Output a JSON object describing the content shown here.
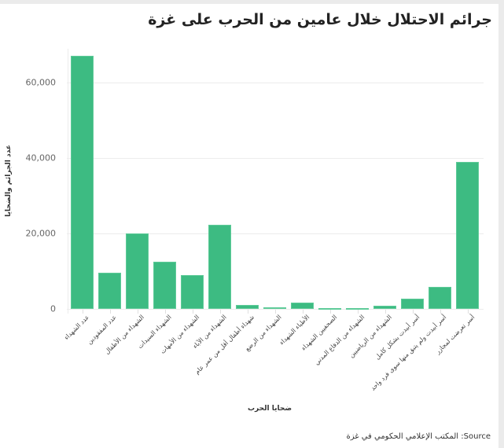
{
  "title": "جرائم الاحتلال خلال عامين من الحرب على غزة",
  "source_label": "المكتب الإعلامي الحكومي في غزة :Source",
  "colors": {
    "bar": "#3dbb82",
    "background": "#ffffff",
    "frame": "#ebebeb"
  },
  "chart_data": {
    "type": "bar",
    "title": "جرائم الاحتلال خلال عامين من الحرب على غزة",
    "xlabel": "ضحايا الحرب",
    "ylabel": "عدد الجرائم والضحايا",
    "ylim": [
      0,
      70000
    ],
    "yticks": [
      0,
      20000,
      40000,
      60000
    ],
    "ytick_labels": [
      "0",
      "20,000",
      "40,000",
      "60,000"
    ],
    "grid": true,
    "legend": null,
    "categories": [
      "عدد الشهداء",
      "عدد المفقودين",
      "الشهداء من الأطفال",
      "الشهداء السيدات",
      "الشهداء من الأمهات",
      "الشهداء من الآباء",
      "شهداء أطفال أقل من عمر عام",
      "الشهداء من الرضع",
      "الأطباء الشهداء",
      "الصحفيين الشهداء",
      "الشهداء من الدفاع المدني",
      "الشهداء من الرياضيين",
      "أسر أبيدت بشكل كامل",
      "أسر أبيدت ولم يتبق منها سوى فرد واحد",
      "أسر تعرضت لمجازر"
    ],
    "values": [
      67000,
      9500,
      20000,
      12400,
      8900,
      22300,
      1000,
      450,
      1600,
      250,
      150,
      900,
      2700,
      5900,
      39000
    ]
  }
}
